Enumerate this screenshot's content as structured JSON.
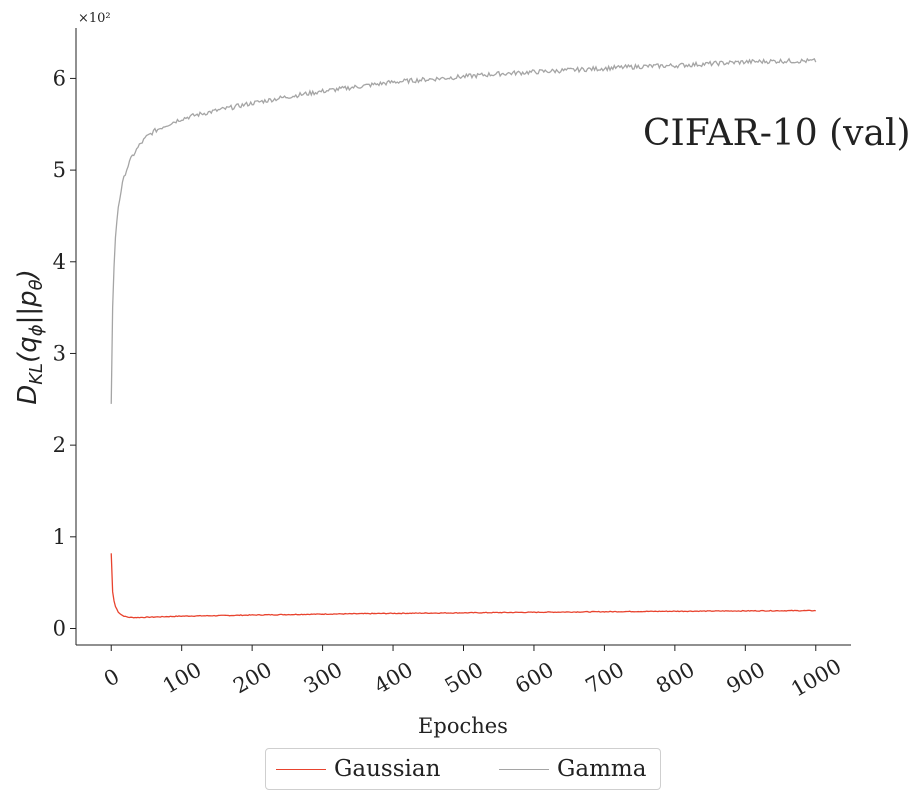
{
  "chart_data": {
    "type": "line",
    "title": "",
    "annotation": "CIFAR-10 (val)",
    "xlabel": "Epoches",
    "ylabel": "D_KL(q_ϕ||p_θ)",
    "ylabel_parts": {
      "base": "D",
      "sub": "KL",
      "open": "(q",
      "sub2": "ϕ",
      "mid": "||p",
      "sub3": "θ",
      "close": ")"
    },
    "y_scale_label": "×10²",
    "xlim": [
      -50,
      1050
    ],
    "ylim": [
      -0.18,
      6.55
    ],
    "x_ticks": [
      0,
      100,
      200,
      300,
      400,
      500,
      600,
      700,
      800,
      900,
      1000
    ],
    "x_tick_labels": [
      "0",
      "100",
      "200",
      "300",
      "400",
      "500",
      "600",
      "700",
      "800",
      "900",
      "1000"
    ],
    "y_ticks": [
      0,
      1,
      2,
      3,
      4,
      5,
      6
    ],
    "y_tick_labels": [
      "0",
      "1",
      "2",
      "3",
      "4",
      "5",
      "6"
    ],
    "legend_position": "bottom-center (below axes)",
    "series": [
      {
        "name": "Gaussian",
        "color": "#e8432e",
        "points": [
          [
            0,
            0.82
          ],
          [
            1,
            0.55
          ],
          [
            2,
            0.4
          ],
          [
            4,
            0.3
          ],
          [
            6,
            0.24
          ],
          [
            10,
            0.18
          ],
          [
            15,
            0.145
          ],
          [
            20,
            0.13
          ],
          [
            25,
            0.122
          ],
          [
            30,
            0.12
          ],
          [
            40,
            0.12
          ],
          [
            60,
            0.125
          ],
          [
            80,
            0.13
          ],
          [
            100,
            0.135
          ],
          [
            150,
            0.14
          ],
          [
            200,
            0.147
          ],
          [
            250,
            0.152
          ],
          [
            300,
            0.157
          ],
          [
            350,
            0.161
          ],
          [
            400,
            0.165
          ],
          [
            450,
            0.168
          ],
          [
            500,
            0.171
          ],
          [
            550,
            0.174
          ],
          [
            600,
            0.177
          ],
          [
            650,
            0.18
          ],
          [
            700,
            0.183
          ],
          [
            750,
            0.186
          ],
          [
            800,
            0.188
          ],
          [
            850,
            0.19
          ],
          [
            900,
            0.192
          ],
          [
            950,
            0.194
          ],
          [
            1000,
            0.195
          ]
        ],
        "noise": 0.004
      },
      {
        "name": "Gamma",
        "color": "#a5a5a5",
        "points": [
          [
            0,
            2.45
          ],
          [
            1,
            3.0
          ],
          [
            2,
            3.5
          ],
          [
            4,
            3.95
          ],
          [
            6,
            4.25
          ],
          [
            8,
            4.45
          ],
          [
            10,
            4.6
          ],
          [
            15,
            4.82
          ],
          [
            20,
            4.97
          ],
          [
            25,
            5.07
          ],
          [
            30,
            5.15
          ],
          [
            40,
            5.27
          ],
          [
            50,
            5.36
          ],
          [
            60,
            5.42
          ],
          [
            75,
            5.48
          ],
          [
            90,
            5.53
          ],
          [
            100,
            5.56
          ],
          [
            120,
            5.6
          ],
          [
            150,
            5.65
          ],
          [
            200,
            5.73
          ],
          [
            250,
            5.8
          ],
          [
            300,
            5.86
          ],
          [
            350,
            5.91
          ],
          [
            400,
            5.96
          ],
          [
            450,
            5.99
          ],
          [
            500,
            6.02
          ],
          [
            550,
            6.05
          ],
          [
            600,
            6.07
          ],
          [
            650,
            6.09
          ],
          [
            700,
            6.11
          ],
          [
            750,
            6.13
          ],
          [
            800,
            6.14
          ],
          [
            850,
            6.16
          ],
          [
            900,
            6.18
          ],
          [
            950,
            6.19
          ],
          [
            1000,
            6.19
          ]
        ],
        "noise": 0.025
      }
    ]
  }
}
